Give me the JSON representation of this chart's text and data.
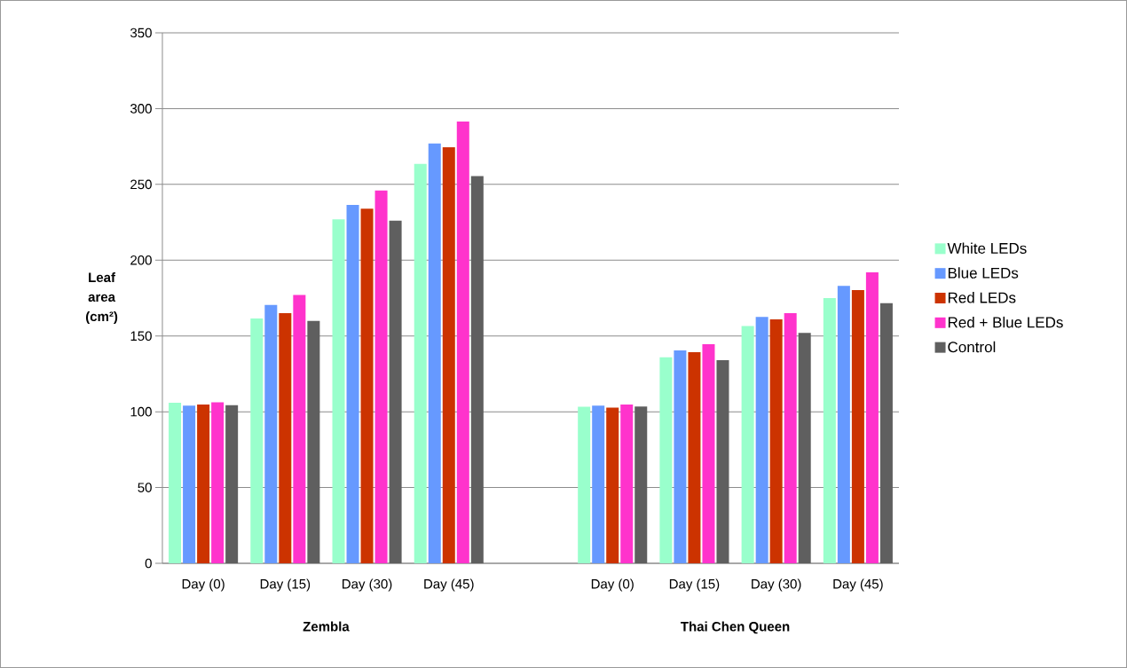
{
  "chart_data": {
    "type": "bar",
    "ylabel": "Leaf area (cm²)",
    "categories": [
      "Day (0)",
      "Day (15)",
      "Day (30)",
      "Day (45)",
      null,
      "Day (0)",
      "Day (15)",
      "Day (30)",
      "Day (45)"
    ],
    "series": [
      {
        "name": "White LEDs",
        "color": "#99ffcc",
        "values": [
          106,
          161.5,
          227,
          263.5,
          null,
          103.3,
          136,
          156.5,
          175
        ]
      },
      {
        "name": "Blue LEDs",
        "color": "#6699ff",
        "values": [
          104,
          170.5,
          236.5,
          277,
          null,
          104,
          140.5,
          162.5,
          183
        ]
      },
      {
        "name": "Red LEDs",
        "color": "#cc3300",
        "values": [
          104.7,
          165,
          234,
          274.5,
          null,
          102.7,
          139.3,
          161,
          180.3
        ]
      },
      {
        "name": "Red + Blue LEDs",
        "color": "#ff33cc",
        "values": [
          106.3,
          177,
          246,
          291.5,
          null,
          104.7,
          144.6,
          165,
          192
        ]
      },
      {
        "name": "Control",
        "color": "#5f5f5f",
        "values": [
          104.3,
          160,
          226,
          255.5,
          null,
          103.5,
          134,
          152,
          171.7
        ]
      }
    ],
    "annotations": [
      "Zembla",
      "Thai Chen Queen"
    ],
    "ylim": [
      0,
      350
    ],
    "yticks": [
      0,
      50,
      100,
      150,
      200,
      250,
      300,
      350
    ],
    "grid": "y",
    "legend": "right"
  }
}
